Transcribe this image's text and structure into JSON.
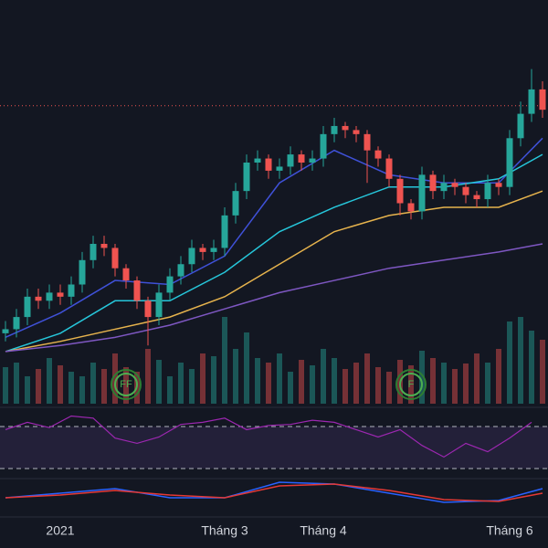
{
  "chart_data": {
    "type": "candlestick",
    "up_color": "#26a69a",
    "down_color": "#ef5350",
    "ylim": [
      0,
      100
    ],
    "ref_line": 74,
    "ref_color": "#ef5350",
    "open": [
      18,
      19,
      22,
      27,
      26,
      28,
      27,
      30,
      36,
      40,
      39,
      34,
      31,
      26,
      22,
      28,
      32,
      35,
      39,
      38,
      39,
      47,
      53,
      60,
      61,
      58,
      59,
      62,
      60,
      61,
      67,
      69,
      68,
      67,
      63,
      61,
      56,
      50,
      48,
      57,
      53,
      55,
      54,
      52,
      51,
      55,
      54,
      66,
      72,
      78
    ],
    "close": [
      19,
      22,
      27,
      26,
      28,
      27,
      30,
      36,
      40,
      39,
      34,
      31,
      26,
      22,
      28,
      32,
      35,
      39,
      38,
      39,
      47,
      53,
      60,
      61,
      58,
      59,
      62,
      60,
      61,
      67,
      69,
      68,
      67,
      63,
      61,
      56,
      50,
      48,
      57,
      53,
      55,
      54,
      52,
      51,
      55,
      54,
      66,
      72,
      78,
      73
    ],
    "high": [
      21,
      24,
      29,
      29,
      30,
      30,
      32,
      38,
      42,
      42,
      40,
      35,
      32,
      27,
      30,
      34,
      37,
      41,
      40,
      41,
      49,
      55,
      62,
      63,
      62,
      61,
      64,
      63,
      63,
      69,
      71,
      70,
      69,
      68,
      64,
      62,
      57,
      51,
      59,
      58,
      57,
      56,
      55,
      53,
      57,
      56,
      68,
      75,
      83,
      80
    ],
    "low": [
      16,
      17,
      20,
      24,
      24,
      25,
      25,
      28,
      34,
      37,
      32,
      29,
      24,
      15,
      20,
      26,
      30,
      33,
      36,
      36,
      37,
      45,
      51,
      58,
      56,
      56,
      57,
      58,
      58,
      59,
      65,
      66,
      65,
      55,
      59,
      54,
      47,
      46,
      46,
      51,
      51,
      52,
      50,
      49,
      49,
      52,
      52,
      64,
      70,
      71
    ],
    "volume": [
      40,
      45,
      30,
      38,
      50,
      42,
      35,
      30,
      45,
      38,
      55,
      40,
      35,
      60,
      48,
      30,
      45,
      38,
      55,
      52,
      95,
      60,
      78,
      50,
      45,
      55,
      35,
      48,
      42,
      60,
      50,
      38,
      45,
      55,
      40,
      35,
      48,
      42,
      58,
      50,
      45,
      38,
      44,
      55,
      45,
      60,
      90,
      95,
      80,
      70
    ],
    "vlim": [
      0,
      100
    ],
    "ma_x": [
      0,
      5,
      10,
      15,
      20,
      25,
      30,
      35,
      40,
      45,
      49
    ],
    "moving_averages": [
      {
        "color": "#3f51d8",
        "values": [
          17,
          23,
          31,
          30,
          37,
          55,
          63,
          57,
          55,
          55,
          66
        ]
      },
      {
        "color": "#26c6da",
        "values": [
          13.5,
          18,
          26,
          26,
          33,
          43,
          49,
          54,
          54,
          56,
          62
        ]
      },
      {
        "color": "#e6b34d",
        "values": [
          13.5,
          16,
          19,
          22,
          27,
          35,
          43,
          47,
          49,
          49,
          53
        ]
      },
      {
        "color": "#7e57c2",
        "values": [
          13.5,
          15,
          17,
          20,
          24,
          28,
          31,
          34,
          36,
          38,
          40
        ]
      }
    ],
    "events": [
      {
        "index": 11,
        "label": "FF"
      },
      {
        "index": 37,
        "label": "F"
      }
    ],
    "rsi": {
      "color": "#9c27b0",
      "x": [
        0,
        2,
        4,
        6,
        8,
        10,
        12,
        14,
        16,
        18,
        20,
        22,
        24,
        26,
        28,
        30,
        32,
        34,
        36,
        38,
        40,
        42,
        44,
        46,
        48
      ],
      "values": [
        67,
        74,
        69,
        80,
        78,
        59,
        54,
        60,
        72,
        74,
        78,
        67,
        71,
        72,
        76,
        74,
        67,
        60,
        67,
        52,
        41,
        54,
        46,
        59,
        74
      ],
      "ylim": [
        0,
        100
      ],
      "bands": [
        70,
        30
      ]
    },
    "macd": {
      "ylim": [
        -5,
        5
      ],
      "x": [
        0,
        5,
        10,
        15,
        20,
        25,
        30,
        35,
        40,
        45,
        49
      ],
      "series": [
        {
          "color": "#2962ff",
          "values": [
            0,
            1,
            2,
            0,
            0,
            3.4,
            3,
            1,
            -1,
            -0.6,
            2
          ]
        },
        {
          "color": "#e53935",
          "values": [
            0,
            0.6,
            1.6,
            0.6,
            0,
            2.6,
            3,
            1.6,
            -0.4,
            -0.8,
            1
          ]
        }
      ]
    },
    "x_labels": [
      {
        "index": 5,
        "label": "2021"
      },
      {
        "index": 20,
        "label": "Tháng 3"
      },
      {
        "index": 29,
        "label": "Tháng 4"
      },
      {
        "index": 46,
        "label": "Tháng 6"
      }
    ]
  }
}
